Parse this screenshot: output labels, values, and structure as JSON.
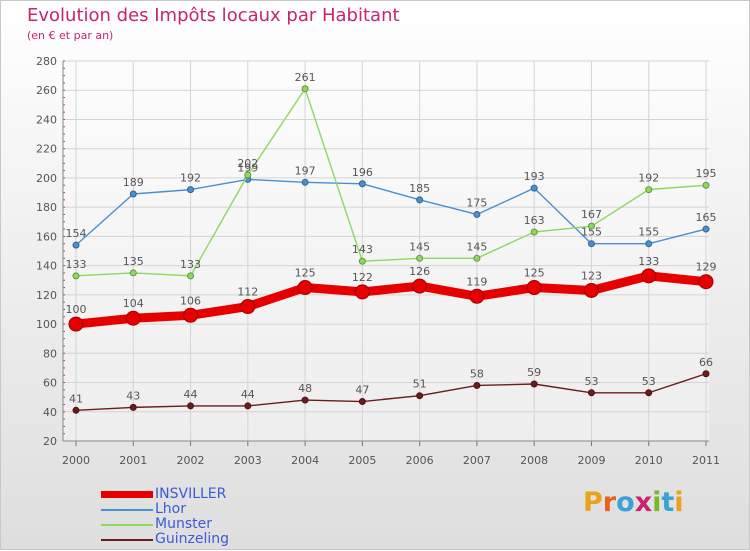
{
  "title": "Evolution des Impôts locaux par Habitant",
  "subtitle": "(en € et par an)",
  "logo": {
    "text": "Proxiti",
    "colors": [
      "#e8a21c",
      "#e8601c",
      "#3aa0d8",
      "#c8246e",
      "#78b82a",
      "#3aa0d8",
      "#e8a21c"
    ]
  },
  "chart_data": {
    "type": "line",
    "title": "Evolution des Impôts locaux par Habitant",
    "subtitle": "(en € et par an)",
    "x": [
      "2000",
      "2001",
      "2002",
      "2003",
      "2004",
      "2005",
      "2006",
      "2007",
      "2008",
      "2009",
      "2010",
      "2011"
    ],
    "ylim": [
      20,
      280
    ],
    "yticks": [
      20,
      40,
      60,
      80,
      100,
      120,
      140,
      160,
      180,
      200,
      220,
      240,
      260,
      280
    ],
    "grid": true,
    "legend_position": "bottom-left",
    "series": [
      {
        "name": "INSVILLER",
        "color": "#e60000",
        "bold": true,
        "values": [
          100,
          104,
          106,
          112,
          125,
          122,
          126,
          119,
          125,
          123,
          133,
          129
        ]
      },
      {
        "name": "Lhor",
        "color": "#4a90d0",
        "bold": false,
        "values": [
          154,
          189,
          192,
          199,
          197,
          196,
          185,
          175,
          193,
          155,
          155,
          165
        ]
      },
      {
        "name": "Munster",
        "color": "#8ed860",
        "bold": false,
        "values": [
          133,
          135,
          133,
          202,
          261,
          143,
          145,
          145,
          163,
          167,
          192,
          195
        ]
      },
      {
        "name": "Guinzeling",
        "color": "#6b1c1c",
        "bold": false,
        "values": [
          41,
          43,
          44,
          44,
          48,
          47,
          51,
          58,
          59,
          53,
          53,
          66
        ]
      }
    ]
  }
}
